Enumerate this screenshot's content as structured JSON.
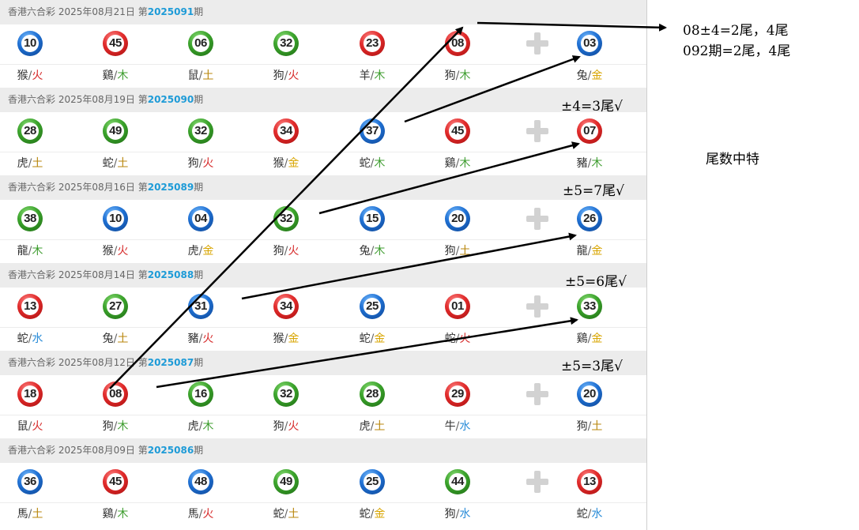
{
  "draws": [
    {
      "header": {
        "prefix": "香港六合彩 2025年08月21日 第",
        "issue": "2025091",
        "suffix": "期"
      },
      "balls": [
        {
          "num": "10",
          "color": "blue",
          "zodiac": "猴",
          "element": "火",
          "el": "fire"
        },
        {
          "num": "45",
          "color": "red",
          "zodiac": "鷄",
          "element": "木",
          "el": "wood"
        },
        {
          "num": "06",
          "color": "green",
          "zodiac": "鼠",
          "element": "土",
          "el": "earth"
        },
        {
          "num": "32",
          "color": "green",
          "zodiac": "狗",
          "element": "火",
          "el": "fire"
        },
        {
          "num": "23",
          "color": "red",
          "zodiac": "羊",
          "element": "木",
          "el": "wood"
        },
        {
          "num": "08",
          "color": "red",
          "zodiac": "狗",
          "element": "木",
          "el": "wood"
        },
        {
          "num": "03",
          "color": "blue",
          "zodiac": "兔",
          "element": "金",
          "el": "metal"
        }
      ]
    },
    {
      "header": {
        "prefix": "香港六合彩 2025年08月19日 第",
        "issue": "2025090",
        "suffix": "期"
      },
      "balls": [
        {
          "num": "28",
          "color": "green",
          "zodiac": "虎",
          "element": "土",
          "el": "earth"
        },
        {
          "num": "49",
          "color": "green",
          "zodiac": "蛇",
          "element": "土",
          "el": "earth"
        },
        {
          "num": "32",
          "color": "green",
          "zodiac": "狗",
          "element": "火",
          "el": "fire"
        },
        {
          "num": "34",
          "color": "red",
          "zodiac": "猴",
          "element": "金",
          "el": "metal"
        },
        {
          "num": "37",
          "color": "blue",
          "zodiac": "蛇",
          "element": "木",
          "el": "wood"
        },
        {
          "num": "45",
          "color": "red",
          "zodiac": "鷄",
          "element": "木",
          "el": "wood"
        },
        {
          "num": "07",
          "color": "red",
          "zodiac": "豬",
          "element": "木",
          "el": "wood"
        }
      ]
    },
    {
      "header": {
        "prefix": "香港六合彩 2025年08月16日 第",
        "issue": "2025089",
        "suffix": "期"
      },
      "balls": [
        {
          "num": "38",
          "color": "green",
          "zodiac": "龍",
          "element": "木",
          "el": "wood"
        },
        {
          "num": "10",
          "color": "blue",
          "zodiac": "猴",
          "element": "火",
          "el": "fire"
        },
        {
          "num": "04",
          "color": "blue",
          "zodiac": "虎",
          "element": "金",
          "el": "metal"
        },
        {
          "num": "32",
          "color": "green",
          "zodiac": "狗",
          "element": "火",
          "el": "fire"
        },
        {
          "num": "15",
          "color": "blue",
          "zodiac": "兔",
          "element": "木",
          "el": "wood"
        },
        {
          "num": "20",
          "color": "blue",
          "zodiac": "狗",
          "element": "土",
          "el": "earth"
        },
        {
          "num": "26",
          "color": "blue",
          "zodiac": "龍",
          "element": "金",
          "el": "metal"
        }
      ]
    },
    {
      "header": {
        "prefix": "香港六合彩 2025年08月14日 第",
        "issue": "2025088",
        "suffix": "期"
      },
      "balls": [
        {
          "num": "13",
          "color": "red",
          "zodiac": "蛇",
          "element": "水",
          "el": "water"
        },
        {
          "num": "27",
          "color": "green",
          "zodiac": "兔",
          "element": "土",
          "el": "earth"
        },
        {
          "num": "31",
          "color": "blue",
          "zodiac": "豬",
          "element": "火",
          "el": "fire"
        },
        {
          "num": "34",
          "color": "red",
          "zodiac": "猴",
          "element": "金",
          "el": "metal"
        },
        {
          "num": "25",
          "color": "blue",
          "zodiac": "蛇",
          "element": "金",
          "el": "metal"
        },
        {
          "num": "01",
          "color": "red",
          "zodiac": "蛇",
          "element": "火",
          "el": "fire"
        },
        {
          "num": "33",
          "color": "green",
          "zodiac": "鷄",
          "element": "金",
          "el": "metal"
        }
      ]
    },
    {
      "header": {
        "prefix": "香港六合彩 2025年08月12日 第",
        "issue": "2025087",
        "suffix": "期"
      },
      "balls": [
        {
          "num": "18",
          "color": "red",
          "zodiac": "鼠",
          "element": "火",
          "el": "fire"
        },
        {
          "num": "08",
          "color": "red",
          "zodiac": "狗",
          "element": "木",
          "el": "wood"
        },
        {
          "num": "16",
          "color": "green",
          "zodiac": "虎",
          "element": "木",
          "el": "wood"
        },
        {
          "num": "32",
          "color": "green",
          "zodiac": "狗",
          "element": "火",
          "el": "fire"
        },
        {
          "num": "28",
          "color": "green",
          "zodiac": "虎",
          "element": "土",
          "el": "earth"
        },
        {
          "num": "29",
          "color": "red",
          "zodiac": "牛",
          "element": "水",
          "el": "water"
        },
        {
          "num": "20",
          "color": "blue",
          "zodiac": "狗",
          "element": "土",
          "el": "earth"
        }
      ]
    },
    {
      "header": {
        "prefix": "香港六合彩 2025年08月09日 第",
        "issue": "2025086",
        "suffix": "期"
      },
      "balls": [
        {
          "num": "36",
          "color": "blue",
          "zodiac": "馬",
          "element": "土",
          "el": "earth"
        },
        {
          "num": "45",
          "color": "red",
          "zodiac": "鷄",
          "element": "木",
          "el": "wood"
        },
        {
          "num": "48",
          "color": "blue",
          "zodiac": "馬",
          "element": "火",
          "el": "fire"
        },
        {
          "num": "49",
          "color": "green",
          "zodiac": "蛇",
          "element": "土",
          "el": "earth"
        },
        {
          "num": "25",
          "color": "blue",
          "zodiac": "蛇",
          "element": "金",
          "el": "metal"
        },
        {
          "num": "44",
          "color": "green",
          "zodiac": "狗",
          "element": "水",
          "el": "water"
        },
        {
          "num": "13",
          "color": "red",
          "zodiac": "蛇",
          "element": "水",
          "el": "water"
        }
      ]
    }
  ],
  "annotations": {
    "line1": "08±4=2尾，4尾",
    "line2": "092期=2尾，4尾",
    "note_090": "±4=3尾√",
    "note_089": "±5=7尾√",
    "note_088": "±5=6尾√",
    "note_087": "±5=3尾√",
    "side_title": "尾数中特"
  },
  "colors": {
    "issue": "#1e9bd7",
    "header_bg": "#ececec",
    "fire": "#d62b2b",
    "wood": "#3d9c2e",
    "earth": "#b8860b",
    "metal": "#d8a500",
    "water": "#2b8dd8"
  }
}
